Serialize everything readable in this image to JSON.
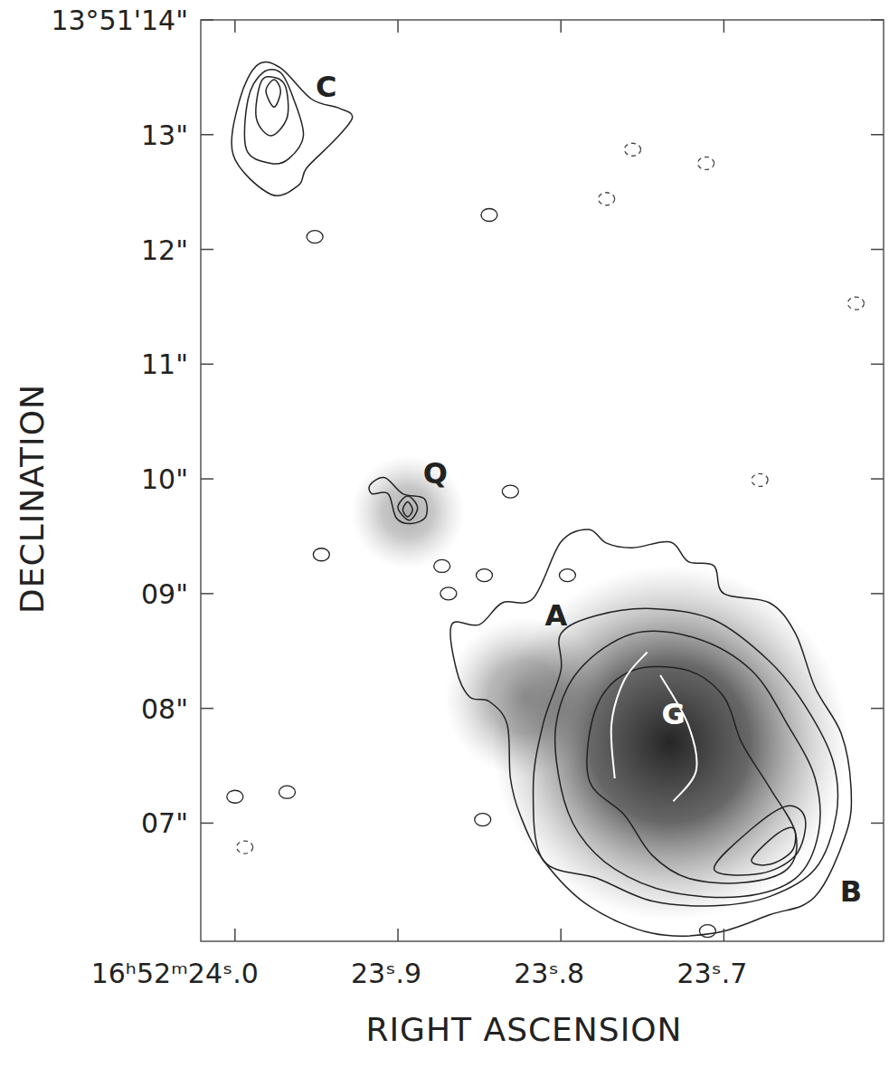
{
  "chart_data": {
    "type": "contour",
    "x_label": "RIGHT ASCENSION",
    "y_label": "DECLINATION",
    "xlim": [
      24.021,
      23.602
    ],
    "ylim": [
      5.97,
      14.0
    ],
    "xticks": [
      {
        "value": 24.0,
        "label": "16ʰ52ᵐ24ˢ.0"
      },
      {
        "value": 23.9,
        "label": "23ˢ.9"
      },
      {
        "value": 23.8,
        "label": "23ˢ.8"
      },
      {
        "value": 23.7,
        "label": "23ˢ.7"
      }
    ],
    "yticks": [
      {
        "value": 7,
        "label": "07\""
      },
      {
        "value": 8,
        "label": "08\""
      },
      {
        "value": 9,
        "label": "09\""
      },
      {
        "value": 10,
        "label": "10\""
      },
      {
        "value": 11,
        "label": "11\""
      },
      {
        "value": 12,
        "label": "12\""
      },
      {
        "value": 13,
        "label": "13\""
      },
      {
        "value": 14,
        "label": "13°51'14\""
      }
    ],
    "gray_blobs": {
      "x": [
        23.894,
        23.733,
        23.822
      ],
      "y": [
        9.71,
        7.7,
        8.1
      ],
      "size": [
        0.5,
        1.55,
        0.7
      ],
      "intensity": [
        0.35,
        0.95,
        0.45
      ]
    },
    "series": [
      {
        "type": "contour",
        "color": "#222222",
        "line_style": "solid",
        "x": [
          23.978,
          24.001,
          23.997,
          23.986,
          23.972,
          23.953,
          23.936,
          23.928,
          23.939,
          23.956,
          23.961
        ],
        "values": [
          12.48,
          12.82,
          13.31,
          13.61,
          13.58,
          13.31,
          13.23,
          13.15,
          12.95,
          12.71,
          12.56
        ]
      },
      {
        "type": "contour",
        "color": "#222222",
        "line_style": "solid",
        "x": [
          23.978,
          23.993,
          23.992,
          23.983,
          23.972,
          23.964,
          23.958,
          23.967
        ],
        "values": [
          12.75,
          12.87,
          13.31,
          13.54,
          13.54,
          13.31,
          12.99,
          12.79
        ]
      },
      {
        "type": "contour",
        "color": "#222222",
        "line_style": "solid",
        "x": [
          23.978,
          23.987,
          23.984,
          23.976,
          23.969,
          23.968
        ],
        "values": [
          12.99,
          13.15,
          13.46,
          13.5,
          13.42,
          13.15
        ]
      },
      {
        "type": "contour",
        "color": "#222222",
        "line_style": "solid",
        "x": [
          23.976,
          23.981,
          23.976,
          23.972
        ],
        "values": [
          13.24,
          13.38,
          13.48,
          13.38
        ]
      },
      {
        "type": "contour",
        "color": "#222222",
        "line_style": "solid",
        "x": [
          23.917,
          23.908,
          23.897,
          23.884,
          23.883,
          23.892,
          23.901,
          23.906,
          23.916
        ],
        "values": [
          9.95,
          10.01,
          9.87,
          9.83,
          9.67,
          9.61,
          9.66,
          9.87,
          9.87
        ]
      },
      {
        "type": "contour",
        "color": "#222222",
        "line_style": "solid",
        "x": [
          23.9,
          23.894,
          23.888,
          23.893
        ],
        "values": [
          9.75,
          9.85,
          9.75,
          9.64
        ]
      },
      {
        "type": "contour",
        "color": "#222222",
        "line_style": "solid",
        "x": [
          23.897,
          23.894,
          23.891,
          23.894
        ],
        "values": [
          9.73,
          9.8,
          9.73,
          9.67
        ]
      },
      {
        "type": "contour",
        "color": "#222222",
        "line_style": "solid",
        "x": [
          23.867,
          23.85,
          23.836,
          23.817,
          23.8,
          23.783,
          23.772,
          23.756,
          23.733,
          23.722,
          23.706,
          23.7,
          23.672,
          23.656,
          23.644,
          23.628,
          23.622,
          23.625,
          23.644,
          23.672,
          23.706,
          23.744,
          23.783,
          23.811,
          23.825,
          23.831,
          23.833,
          23.844,
          23.856,
          23.864
        ],
        "values": [
          8.73,
          8.73,
          8.92,
          8.96,
          9.45,
          9.56,
          9.44,
          9.4,
          9.45,
          9.28,
          9.24,
          9.0,
          8.92,
          8.65,
          8.18,
          7.78,
          7.31,
          6.91,
          6.36,
          6.2,
          6.04,
          6.04,
          6.28,
          6.68,
          7.07,
          7.39,
          7.86,
          8.06,
          8.1,
          8.33
        ]
      },
      {
        "type": "contour",
        "color": "#222222",
        "line_style": "solid",
        "x": [
          23.811,
          23.817,
          23.811,
          23.8,
          23.8,
          23.778,
          23.744,
          23.706,
          23.672,
          23.65,
          23.633,
          23.631,
          23.644,
          23.672,
          23.706,
          23.744,
          23.778
        ],
        "values": [
          6.68,
          7.31,
          7.86,
          8.33,
          8.65,
          8.81,
          8.87,
          8.77,
          8.41,
          8.02,
          7.54,
          7.07,
          6.6,
          6.36,
          6.28,
          6.32,
          6.52
        ]
      },
      {
        "type": "contour",
        "color": "#222222",
        "line_style": "solid",
        "x": [
          23.8,
          23.803,
          23.789,
          23.756,
          23.717,
          23.683,
          23.661,
          23.644,
          23.642,
          23.656,
          23.689,
          23.733,
          23.767,
          23.789
        ],
        "values": [
          7.31,
          7.86,
          8.33,
          8.65,
          8.61,
          8.33,
          7.86,
          7.39,
          6.91,
          6.52,
          6.36,
          6.4,
          6.6,
          6.91
        ]
      },
      {
        "type": "contour",
        "color": "#222222",
        "line_style": "solid",
        "x": [
          23.761,
          23.783,
          23.778,
          23.756,
          23.722,
          23.7,
          23.689,
          23.672,
          23.656,
          23.661,
          23.689,
          23.722,
          23.744
        ],
        "values": [
          7.07,
          7.39,
          8.02,
          8.33,
          8.33,
          8.1,
          7.7,
          7.31,
          6.91,
          6.6,
          6.48,
          6.52,
          6.72
        ]
      },
      {
        "type": "contour",
        "color": "#222222",
        "line_style": "solid",
        "x": [
          23.706,
          23.683,
          23.661,
          23.65,
          23.656,
          23.678
        ],
        "values": [
          6.6,
          6.95,
          7.15,
          7.03,
          6.72,
          6.56
        ]
      },
      {
        "type": "contour",
        "color": "#222222",
        "line_style": "solid",
        "x": [
          23.683,
          23.667,
          23.657,
          23.658,
          23.672
        ],
        "values": [
          6.68,
          6.91,
          6.95,
          6.76,
          6.64
        ]
      },
      {
        "type": "line",
        "color": "#ffffff",
        "line_style": "solid",
        "x": [
          23.767,
          23.769,
          23.761,
          23.747
        ],
        "values": [
          7.39,
          7.86,
          8.25,
          8.49
        ]
      },
      {
        "type": "line",
        "color": "#ffffff",
        "line_style": "solid",
        "x": [
          23.731,
          23.717,
          23.722,
          23.739
        ],
        "values": [
          7.19,
          7.46,
          7.86,
          8.29
        ]
      },
      {
        "type": "scatter",
        "color": "#222222",
        "line_style": "solid",
        "marker": "ring",
        "x": [
          23.951,
          23.844,
          23.831,
          23.847,
          23.869,
          23.947,
          23.873,
          23.968,
          24.0,
          23.848,
          23.71,
          23.796
        ],
        "values": [
          12.11,
          12.3,
          9.89,
          9.16,
          9.0,
          9.34,
          9.24,
          7.27,
          7.23,
          7.03,
          6.06,
          9.16
        ]
      },
      {
        "type": "scatter",
        "color": "#444444",
        "line_style": "dashed",
        "marker": "ring",
        "x": [
          23.756,
          23.772,
          23.711,
          23.678,
          23.619,
          23.994
        ],
        "values": [
          12.87,
          12.44,
          12.75,
          9.99,
          11.53,
          6.79
        ]
      }
    ],
    "annotations": [
      {
        "text": "C",
        "x": 23.944,
        "y": 13.42,
        "color": "#222222"
      },
      {
        "text": "Q",
        "x": 23.877,
        "y": 10.05,
        "color": "#222222"
      },
      {
        "text": "A",
        "x": 23.803,
        "y": 8.81,
        "color": "#222222"
      },
      {
        "text": "G",
        "x": 23.731,
        "y": 7.95,
        "color": "#ffffff"
      },
      {
        "text": "B",
        "x": 23.622,
        "y": 6.4,
        "color": "#222222"
      }
    ]
  }
}
